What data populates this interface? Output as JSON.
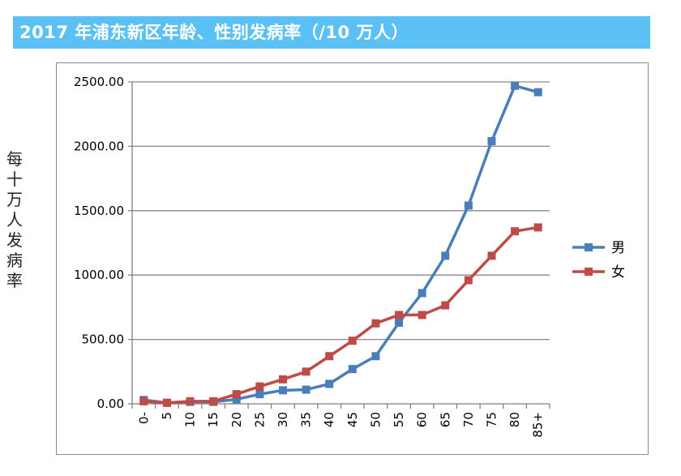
{
  "header": {
    "title": "2017 年浦东新区年龄、性别发病率（/10 万人）"
  },
  "chart_data": {
    "type": "line",
    "title": "2017 年浦东新区年龄、性别发病率（/10 万人）",
    "ylabel": "每十万人发病率",
    "xlabel": "",
    "categories": [
      "0-",
      "5",
      "10",
      "15",
      "20",
      "25",
      "30",
      "35",
      "40",
      "45",
      "50",
      "55",
      "60",
      "65",
      "70",
      "75",
      "80",
      "85+"
    ],
    "ylim": [
      0,
      2500
    ],
    "yticks": [
      "0.00",
      "500.00",
      "1000.00",
      "1500.00",
      "2000.00",
      "2500.00"
    ],
    "grid": true,
    "legend_position": "right",
    "series": [
      {
        "name": "男",
        "color": "#4a7ebb",
        "values": [
          30,
          8,
          15,
          15,
          35,
          75,
          105,
          110,
          155,
          270,
          370,
          630,
          860,
          1150,
          1540,
          2040,
          2470,
          2420
        ]
      },
      {
        "name": "女",
        "color": "#be4b48",
        "values": [
          20,
          8,
          20,
          20,
          75,
          135,
          190,
          250,
          370,
          490,
          625,
          690,
          690,
          765,
          960,
          1150,
          1340,
          1370
        ]
      }
    ]
  }
}
